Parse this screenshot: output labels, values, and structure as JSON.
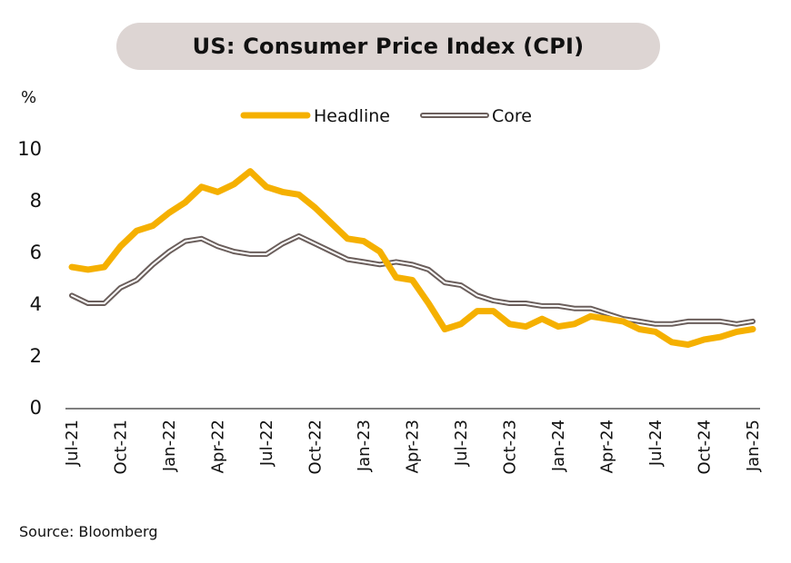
{
  "chart_data": {
    "type": "line",
    "title": "US: Consumer Price Index (CPI)",
    "ylabel": "%",
    "xlabel": "",
    "ylim": [
      0,
      10
    ],
    "yticks": [
      0,
      2,
      4,
      6,
      8,
      10
    ],
    "grid": false,
    "legend_position": "top-center",
    "x": [
      "Jul-21",
      "Aug-21",
      "Sep-21",
      "Oct-21",
      "Nov-21",
      "Dec-21",
      "Jan-22",
      "Feb-22",
      "Mar-22",
      "Apr-22",
      "May-22",
      "Jun-22",
      "Jul-22",
      "Aug-22",
      "Sep-22",
      "Oct-22",
      "Nov-22",
      "Dec-22",
      "Jan-23",
      "Feb-23",
      "Mar-23",
      "Apr-23",
      "May-23",
      "Jun-23",
      "Jul-23",
      "Aug-23",
      "Sep-23",
      "Oct-23",
      "Nov-23",
      "Dec-23",
      "Jan-24",
      "Feb-24",
      "Mar-24",
      "Apr-24",
      "May-24",
      "Jun-24",
      "Jul-24",
      "Aug-24",
      "Sep-24",
      "Oct-24",
      "Nov-24",
      "Dec-24",
      "Jan-25"
    ],
    "xtick_labels": [
      "Jul-21",
      "Oct-21",
      "Jan-22",
      "Apr-22",
      "Jul-22",
      "Oct-22",
      "Jan-23",
      "Apr-23",
      "Jul-23",
      "Oct-23",
      "Jan-24",
      "Apr-24",
      "Jul-24",
      "Oct-24",
      "Jan-25"
    ],
    "series": [
      {
        "name": "Headline",
        "color": "#f5b000",
        "values": [
          5.4,
          5.3,
          5.4,
          6.2,
          6.8,
          7.0,
          7.5,
          7.9,
          8.5,
          8.3,
          8.6,
          9.1,
          8.5,
          8.3,
          8.2,
          7.7,
          7.1,
          6.5,
          6.4,
          6.0,
          5.0,
          4.9,
          4.0,
          3.0,
          3.2,
          3.7,
          3.7,
          3.2,
          3.1,
          3.4,
          3.1,
          3.2,
          3.5,
          3.4,
          3.3,
          3.0,
          2.9,
          2.5,
          2.4,
          2.6,
          2.7,
          2.9,
          3.0
        ]
      },
      {
        "name": "Core",
        "color": "#6b5f5c",
        "values": [
          4.3,
          4.0,
          4.0,
          4.6,
          4.9,
          5.5,
          6.0,
          6.4,
          6.5,
          6.2,
          6.0,
          5.9,
          5.9,
          6.3,
          6.6,
          6.3,
          6.0,
          5.7,
          5.6,
          5.5,
          5.6,
          5.5,
          5.3,
          4.8,
          4.7,
          4.3,
          4.1,
          4.0,
          4.0,
          3.9,
          3.9,
          3.8,
          3.8,
          3.6,
          3.4,
          3.3,
          3.2,
          3.2,
          3.3,
          3.3,
          3.3,
          3.2,
          3.3
        ]
      }
    ],
    "source": "Source: Bloomberg"
  },
  "header": {
    "title": "US: Consumer Price Index (CPI)"
  },
  "axis": {
    "unit": "%"
  },
  "legend": {
    "headline": "Headline",
    "core": "Core"
  },
  "footer": {
    "source": "Source: Bloomberg"
  }
}
